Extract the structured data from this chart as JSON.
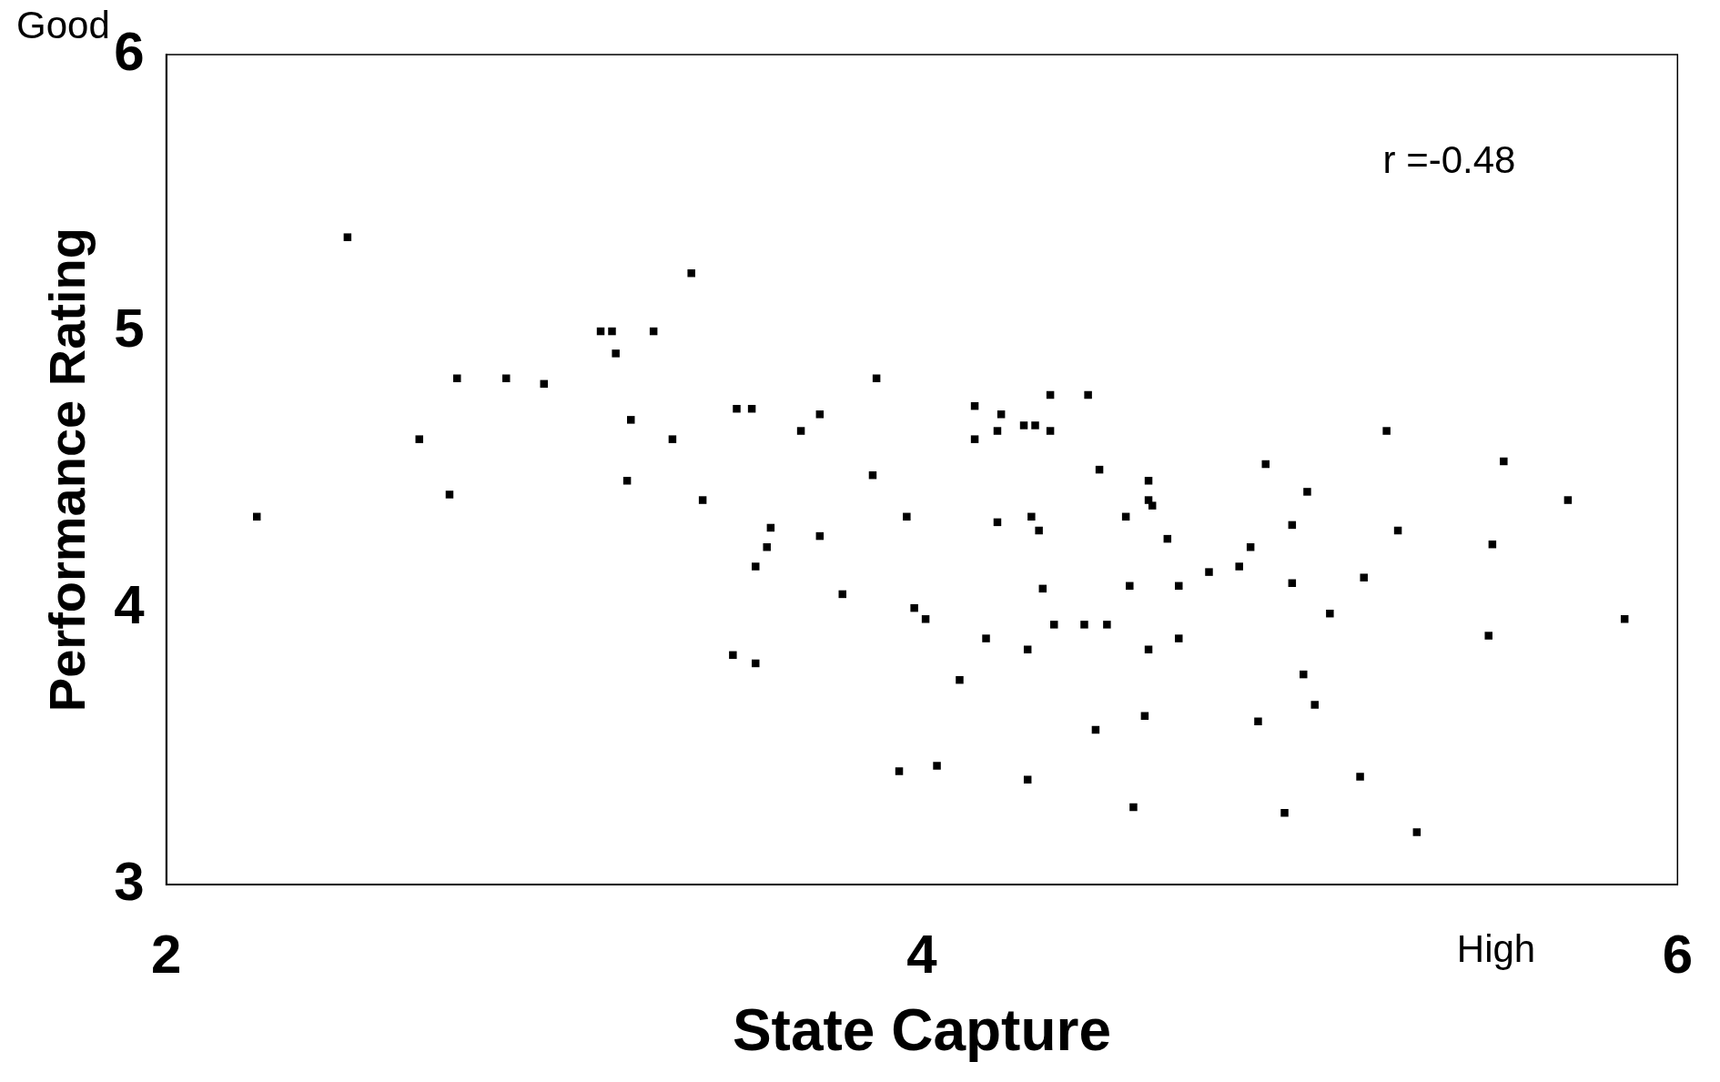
{
  "chart_data": {
    "type": "scatter",
    "xlabel": "State Capture",
    "ylabel": "Performance Rating",
    "marker": "square",
    "color": "#000000",
    "grid": false,
    "legend": false,
    "xlim": [
      2,
      6
    ],
    "xticks": [
      2,
      4,
      6
    ],
    "ylim": [
      3,
      6
    ],
    "yticks": [
      3,
      4,
      5,
      6
    ],
    "annotations": [
      {
        "text": "r =-0.48"
      },
      {
        "text": "Good"
      },
      {
        "text": "High"
      }
    ],
    "x": [
      2.24,
      2.48,
      2.67,
      2.75,
      2.77,
      2.9,
      3.0,
      3.15,
      3.18,
      3.19,
      3.23,
      3.22,
      3.29,
      3.34,
      3.39,
      3.42,
      3.5,
      3.51,
      3.55,
      3.56,
      3.56,
      3.59,
      3.6,
      3.68,
      3.73,
      3.73,
      3.79,
      3.87,
      3.88,
      3.94,
      3.96,
      3.98,
      4.01,
      4.04,
      4.1,
      4.14,
      4.14,
      4.17,
      4.2,
      4.2,
      4.21,
      4.27,
      4.28,
      4.28,
      4.29,
      4.3,
      4.31,
      4.32,
      4.34,
      4.34,
      4.35,
      4.43,
      4.44,
      4.46,
      4.47,
      4.49,
      4.54,
      4.55,
      4.56,
      4.59,
      4.6,
      4.6,
      4.6,
      4.61,
      4.65,
      4.68,
      4.68,
      4.76,
      4.84,
      4.87,
      4.89,
      4.91,
      4.96,
      4.98,
      4.98,
      5.01,
      5.02,
      5.04,
      5.08,
      5.16,
      5.17,
      5.23,
      5.26,
      5.31,
      5.5,
      5.51,
      5.54,
      5.71,
      5.86
    ],
    "values": [
      4.33,
      5.34,
      4.61,
      4.41,
      4.83,
      4.83,
      4.81,
      5.0,
      5.0,
      4.92,
      4.68,
      4.46,
      5.0,
      4.61,
      5.21,
      4.39,
      3.83,
      4.72,
      4.72,
      4.15,
      3.8,
      4.22,
      4.29,
      4.64,
      4.7,
      4.26,
      4.05,
      4.48,
      4.83,
      3.41,
      4.33,
      4.0,
      3.96,
      3.43,
      3.74,
      4.73,
      4.61,
      3.89,
      4.31,
      4.64,
      4.7,
      4.66,
      3.85,
      3.38,
      4.33,
      4.66,
      4.28,
      4.07,
      4.64,
      4.77,
      3.94,
      3.94,
      4.77,
      3.56,
      4.5,
      3.94,
      4.33,
      4.08,
      3.28,
      3.61,
      4.46,
      4.39,
      3.85,
      4.37,
      4.25,
      3.89,
      4.08,
      4.13,
      4.15,
      4.22,
      3.59,
      4.52,
      3.26,
      4.3,
      4.09,
      3.76,
      4.42,
      3.65,
      3.98,
      3.39,
      4.11,
      4.64,
      4.28,
      3.19,
      3.9,
      4.23,
      4.53,
      4.39,
      3.96
    ]
  }
}
